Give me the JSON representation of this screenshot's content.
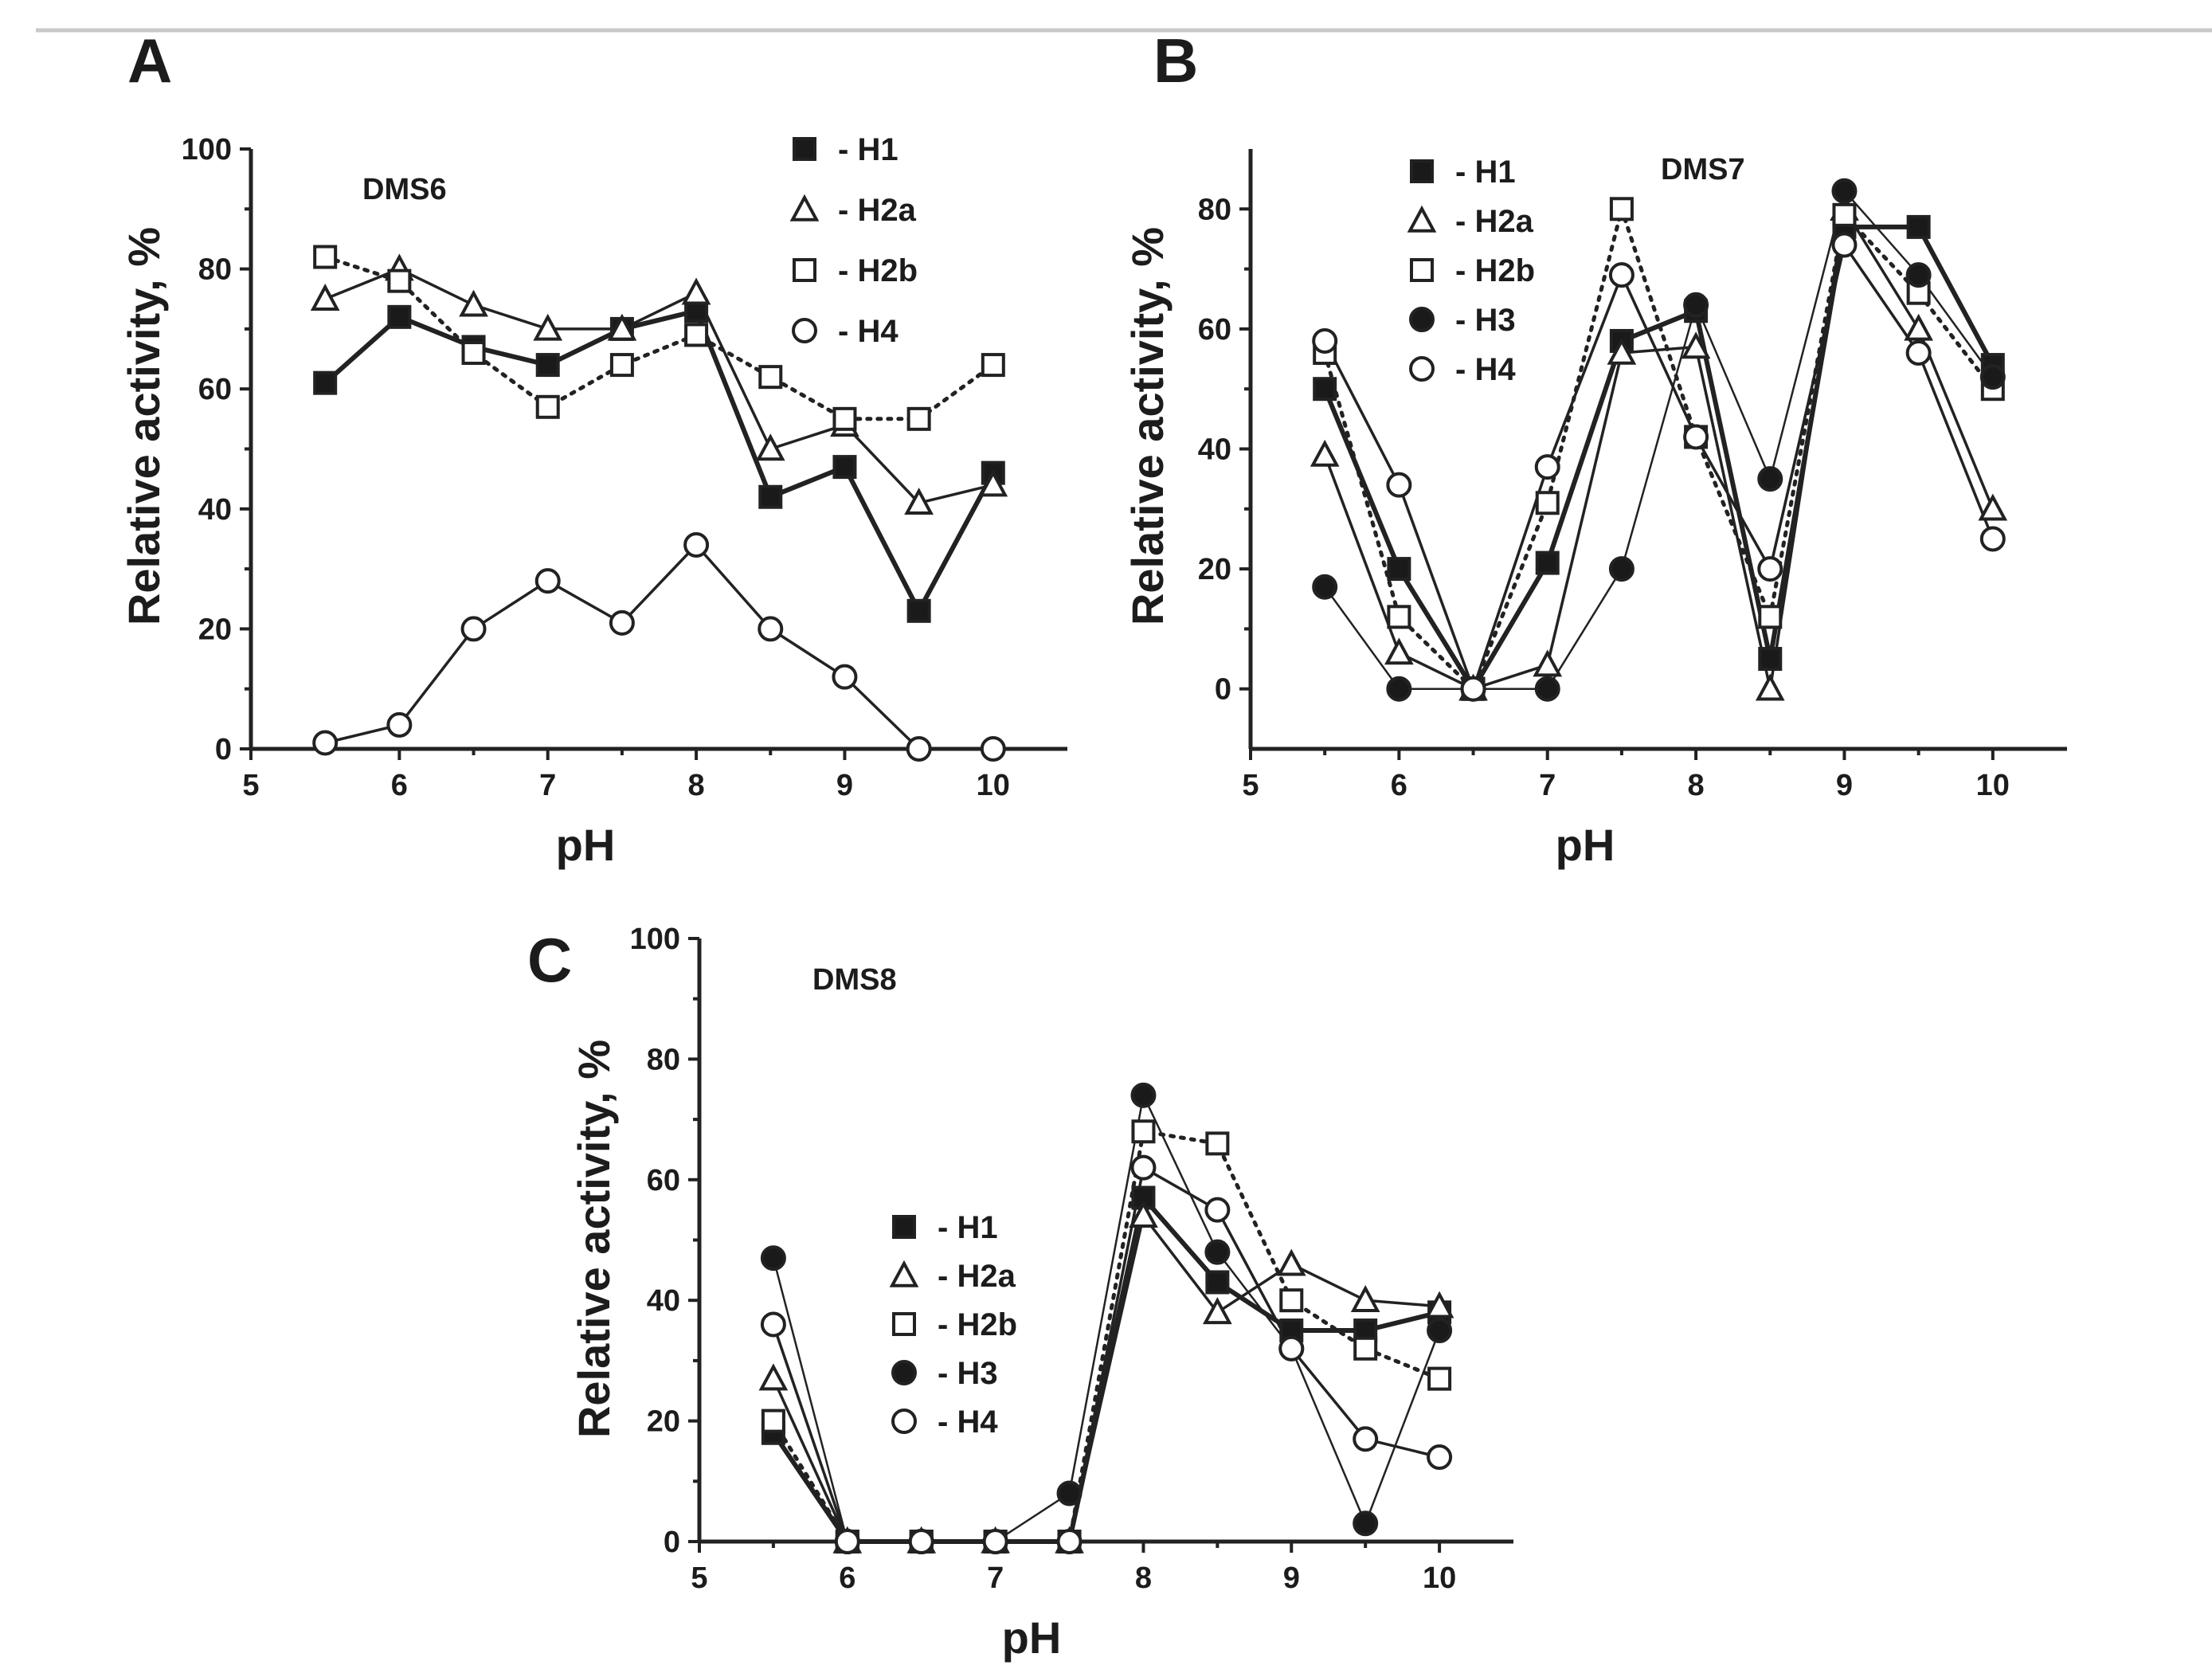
{
  "figure": {
    "panels": [
      {
        "letter": "A"
      },
      {
        "letter": "B"
      },
      {
        "letter": "C"
      }
    ]
  },
  "chart_data": [
    {
      "type": "line",
      "panel": "A",
      "title": "DMS6",
      "xlabel": "pH",
      "ylabel": "Relative activity, %",
      "xlim": [
        5,
        10.5
      ],
      "ylim": [
        0,
        100
      ],
      "xticks": [
        5,
        6,
        7,
        8,
        9,
        10
      ],
      "yticks": [
        0,
        20,
        40,
        60,
        80,
        100
      ],
      "x": [
        5.5,
        6,
        6.5,
        7,
        7.5,
        8,
        8.5,
        9,
        9.5,
        10
      ],
      "legend_position": "top-right",
      "series": [
        {
          "name": "H1",
          "marker": "filled-square",
          "line": "bold",
          "values": [
            61,
            72,
            67,
            64,
            70,
            73,
            42,
            47,
            23,
            46
          ]
        },
        {
          "name": "H2a",
          "marker": "open-triangle",
          "line": "solid",
          "values": [
            75,
            80,
            74,
            70,
            70,
            76,
            50,
            54,
            41,
            44
          ]
        },
        {
          "name": "H2b",
          "marker": "open-square",
          "line": "dotted",
          "values": [
            82,
            78,
            66,
            57,
            64,
            69,
            62,
            55,
            55,
            64
          ]
        },
        {
          "name": "H4",
          "marker": "open-circle",
          "line": "solid",
          "values": [
            1,
            4,
            20,
            28,
            21,
            34,
            20,
            12,
            0,
            0
          ]
        }
      ]
    },
    {
      "type": "line",
      "panel": "B",
      "title": "DMS7",
      "xlabel": "pH",
      "ylabel": "Relative activity, %",
      "xlim": [
        5,
        10.5
      ],
      "ylim": [
        -10,
        90
      ],
      "xticks": [
        5,
        6,
        7,
        8,
        9,
        10
      ],
      "yticks": [
        0,
        20,
        40,
        60,
        80
      ],
      "x": [
        5.5,
        6,
        6.5,
        7,
        7.5,
        8,
        8.5,
        9,
        9.5,
        10
      ],
      "legend_position": "top-left",
      "series": [
        {
          "name": "H1",
          "marker": "filled-square",
          "line": "bold",
          "values": [
            50,
            20,
            0,
            21,
            58,
            63,
            5,
            77,
            77,
            54
          ]
        },
        {
          "name": "H2a",
          "marker": "open-triangle",
          "line": "solid",
          "values": [
            39,
            6,
            0,
            4,
            56,
            57,
            0,
            80,
            60,
            30
          ]
        },
        {
          "name": "H2b",
          "marker": "open-square",
          "line": "dotted",
          "values": [
            56,
            12,
            0,
            31,
            80,
            42,
            12,
            79,
            66,
            50
          ]
        },
        {
          "name": "H3",
          "marker": "filled-circle",
          "line": "thin",
          "values": [
            17,
            0,
            0,
            0,
            20,
            64,
            35,
            83,
            69,
            52
          ]
        },
        {
          "name": "H4",
          "marker": "open-circle",
          "line": "solid",
          "values": [
            58,
            34,
            0,
            37,
            69,
            42,
            20,
            74,
            56,
            25
          ]
        }
      ]
    },
    {
      "type": "line",
      "panel": "C",
      "title": "DMS8",
      "xlabel": "pH",
      "ylabel": "Relative activity, %",
      "xlim": [
        5,
        10.5
      ],
      "ylim": [
        0,
        100
      ],
      "xticks": [
        5,
        6,
        7,
        8,
        9,
        10
      ],
      "yticks": [
        0,
        20,
        40,
        60,
        80,
        100
      ],
      "x": [
        5.5,
        6,
        6.5,
        7,
        7.5,
        8,
        8.5,
        9,
        9.5,
        10
      ],
      "legend_position": "middle-left",
      "series": [
        {
          "name": "H1",
          "marker": "filled-square",
          "line": "bold",
          "values": [
            18,
            0,
            0,
            0,
            0,
            57,
            43,
            35,
            35,
            38
          ]
        },
        {
          "name": "H2a",
          "marker": "open-triangle",
          "line": "solid",
          "values": [
            27,
            0,
            0,
            0,
            0,
            54,
            38,
            46,
            40,
            39
          ]
        },
        {
          "name": "H2b",
          "marker": "open-square",
          "line": "dotted",
          "values": [
            20,
            0,
            0,
            0,
            0,
            68,
            66,
            40,
            32,
            27
          ]
        },
        {
          "name": "H3",
          "marker": "filled-circle",
          "line": "thin",
          "values": [
            47,
            0,
            0,
            0,
            8,
            74,
            48,
            32,
            3,
            35
          ]
        },
        {
          "name": "H4",
          "marker": "open-circle",
          "line": "solid",
          "values": [
            36,
            0,
            0,
            0,
            0,
            62,
            55,
            32,
            17,
            14
          ]
        }
      ]
    }
  ]
}
